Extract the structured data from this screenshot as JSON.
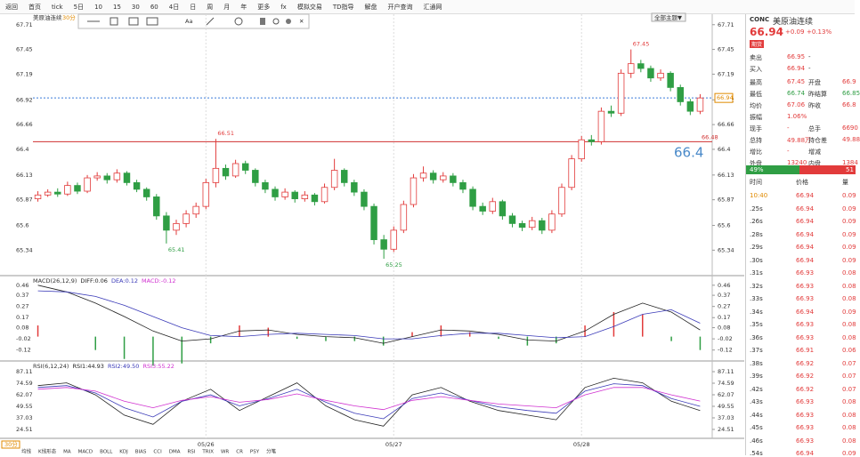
{
  "toolbar": {
    "items": [
      "返回",
      "首页",
      "tick",
      "5日",
      "10",
      "15",
      "30",
      "60",
      "4日",
      "日",
      "周",
      "月",
      "年",
      "更多",
      "fx",
      "模拟交易",
      "TD指导",
      "解盘",
      "开户查询",
      "汇通网"
    ]
  },
  "chart_data": {
    "type": "candlestick",
    "title": "美原油连续",
    "period": "30分",
    "theme_button": "全部主题▼",
    "draw_tool": "Aa",
    "categories": [
      null,
      null,
      null,
      null,
      null,
      null,
      null,
      null,
      null,
      null,
      null,
      null,
      null,
      null,
      null,
      null,
      null,
      "05/26",
      null,
      null,
      null,
      null,
      null,
      null,
      null,
      null,
      null,
      null,
      null,
      null,
      null,
      null,
      null,
      null,
      null,
      null,
      "05/27",
      null,
      null,
      null,
      null,
      null,
      null,
      null,
      null,
      null,
      null,
      null,
      null,
      null,
      null,
      null,
      null,
      null,
      null,
      "05/28",
      null,
      null,
      null,
      null,
      null,
      null,
      null,
      null,
      null,
      null,
      null,
      null
    ],
    "candles": [
      [
        65.88,
        65.96,
        65.85,
        65.92
      ],
      [
        65.92,
        65.98,
        65.9,
        65.95
      ],
      [
        65.95,
        65.99,
        65.9,
        65.93
      ],
      [
        65.93,
        66.06,
        65.91,
        66.02
      ],
      [
        66.02,
        66.05,
        65.93,
        65.96
      ],
      [
        65.96,
        66.13,
        65.94,
        66.1
      ],
      [
        66.1,
        66.16,
        66.07,
        66.12
      ],
      [
        66.12,
        66.15,
        66.04,
        66.08
      ],
      [
        66.08,
        66.19,
        66.05,
        66.15
      ],
      [
        66.15,
        66.17,
        66.02,
        66.05
      ],
      [
        66.05,
        66.08,
        65.95,
        65.98
      ],
      [
        65.98,
        66.0,
        65.86,
        65.9
      ],
      [
        65.9,
        65.93,
        65.66,
        65.7
      ],
      [
        65.7,
        65.74,
        65.41,
        65.55
      ],
      [
        65.55,
        65.66,
        65.5,
        65.62
      ],
      [
        65.62,
        65.76,
        65.58,
        65.72
      ],
      [
        65.72,
        65.84,
        65.68,
        65.8
      ],
      [
        65.8,
        66.09,
        65.77,
        66.05
      ],
      [
        66.05,
        66.51,
        66.0,
        66.2
      ],
      [
        66.2,
        66.24,
        66.08,
        66.12
      ],
      [
        66.12,
        66.29,
        66.1,
        66.25
      ],
      [
        66.25,
        66.28,
        66.14,
        66.18
      ],
      [
        66.18,
        66.2,
        66.01,
        66.05
      ],
      [
        66.05,
        66.08,
        65.94,
        65.98
      ],
      [
        65.98,
        66.01,
        65.86,
        65.9
      ],
      [
        65.9,
        65.99,
        65.87,
        65.95
      ],
      [
        65.95,
        65.97,
        65.84,
        65.88
      ],
      [
        65.88,
        65.96,
        65.85,
        65.92
      ],
      [
        65.92,
        65.94,
        65.81,
        65.85
      ],
      [
        65.85,
        66.04,
        65.83,
        66.0
      ],
      [
        66.0,
        66.3,
        65.97,
        66.18
      ],
      [
        66.18,
        66.2,
        66.01,
        66.05
      ],
      [
        66.05,
        66.08,
        65.91,
        65.95
      ],
      [
        65.95,
        65.98,
        65.76,
        65.8
      ],
      [
        65.8,
        65.83,
        65.4,
        65.45
      ],
      [
        65.45,
        65.5,
        65.25,
        65.35
      ],
      [
        65.35,
        65.59,
        65.32,
        65.55
      ],
      [
        65.55,
        65.86,
        65.52,
        65.82
      ],
      [
        65.82,
        66.14,
        65.79,
        66.1
      ],
      [
        66.1,
        66.22,
        66.06,
        66.15
      ],
      [
        66.15,
        66.18,
        66.04,
        66.08
      ],
      [
        66.08,
        66.16,
        66.05,
        66.12
      ],
      [
        66.12,
        66.15,
        66.01,
        66.05
      ],
      [
        66.05,
        66.08,
        65.94,
        65.98
      ],
      [
        65.98,
        66.01,
        65.76,
        65.8
      ],
      [
        65.8,
        65.84,
        65.71,
        65.75
      ],
      [
        65.75,
        65.89,
        65.72,
        65.85
      ],
      [
        65.85,
        65.87,
        65.66,
        65.7
      ],
      [
        65.7,
        65.73,
        65.58,
        65.62
      ],
      [
        65.62,
        65.65,
        65.54,
        65.58
      ],
      [
        65.58,
        65.69,
        65.55,
        65.65
      ],
      [
        65.65,
        65.68,
        65.51,
        65.55
      ],
      [
        65.55,
        65.76,
        65.52,
        65.72
      ],
      [
        65.72,
        66.04,
        65.69,
        66.0
      ],
      [
        66.0,
        66.34,
        65.97,
        66.3
      ],
      [
        66.3,
        66.54,
        66.27,
        66.5
      ],
      [
        66.5,
        66.55,
        66.44,
        66.48
      ],
      [
        66.48,
        66.84,
        66.45,
        66.8
      ],
      [
        66.8,
        66.86,
        66.74,
        66.78
      ],
      [
        66.78,
        67.24,
        66.75,
        67.2
      ],
      [
        67.2,
        67.45,
        67.15,
        67.3
      ],
      [
        67.3,
        67.34,
        67.21,
        67.25
      ],
      [
        67.25,
        67.28,
        67.11,
        67.15
      ],
      [
        67.15,
        67.24,
        67.12,
        67.2
      ],
      [
        67.2,
        67.22,
        67.01,
        67.05
      ],
      [
        67.05,
        67.08,
        66.86,
        66.9
      ],
      [
        66.9,
        66.93,
        66.76,
        66.8
      ],
      [
        66.8,
        66.98,
        66.77,
        66.94
      ]
    ],
    "ylim": [
      65.25,
      67.82
    ],
    "yticks": [
      67.71,
      67.45,
      67.19,
      66.92,
      66.66,
      66.4,
      66.13,
      65.87,
      65.6,
      65.34
    ],
    "up_color": "#e23b3b",
    "down_color": "#2f9e44",
    "hline": {
      "value": 66.48,
      "color": "#d03030"
    },
    "last_line_color": "#3b7bd9",
    "annotations": [
      {
        "value": 67.45,
        "kind": "high"
      },
      {
        "value": 66.51,
        "kind": "high"
      },
      {
        "value": 65.41,
        "kind": "low"
      },
      {
        "value": 65.25,
        "kind": "low"
      }
    ],
    "price_hint": "66.4",
    "macd": {
      "legend": [
        "MACD(26,12,9)",
        "DIFF:0.06",
        "DEA:0.12",
        "MACD:-0.12"
      ],
      "ylim": [
        -0.21,
        0.53
      ],
      "yticks": [
        0.46,
        0.37,
        0.27,
        0.17,
        0.08,
        -0.02,
        -0.12
      ],
      "diff": [
        0.46,
        0.4,
        0.3,
        0.18,
        0.05,
        -0.04,
        -0.02,
        0.05,
        0.06,
        0.02,
        0.0,
        -0.01,
        -0.06,
        0.0,
        0.06,
        0.05,
        0.02,
        -0.03,
        -0.04,
        0.05,
        0.2,
        0.3,
        0.22,
        0.06
      ],
      "dea": [
        0.41,
        0.4,
        0.36,
        0.28,
        0.18,
        0.08,
        0.01,
        0.0,
        0.02,
        0.03,
        0.02,
        0.01,
        -0.02,
        -0.02,
        0.01,
        0.03,
        0.03,
        0.01,
        -0.01,
        0.0,
        0.09,
        0.2,
        0.24,
        0.12
      ],
      "hist": [
        0.1,
        0.0,
        -0.12,
        -0.2,
        -0.26,
        -0.24,
        -0.06,
        0.1,
        0.08,
        -0.02,
        -0.04,
        -0.04,
        -0.08,
        0.04,
        0.1,
        0.04,
        -0.02,
        -0.08,
        -0.06,
        0.1,
        0.22,
        0.2,
        -0.04,
        -0.12
      ],
      "colors": [
        "#222222",
        "#3a3ab8",
        "#d030d0"
      ]
    },
    "rsi": {
      "legend": [
        "RSI(6,12,24)",
        "RSI1:44.93",
        "RSI2:49.50",
        "RSI3:55.22"
      ],
      "ylim": [
        15.8,
        95.8
      ],
      "yticks": [
        87.11,
        74.59,
        62.07,
        49.55,
        37.03,
        24.51
      ],
      "series": [
        {
          "values": [
            72,
            75,
            62,
            40,
            30,
            55,
            68,
            45,
            60,
            75,
            50,
            35,
            28,
            62,
            70,
            55,
            45,
            40,
            35,
            70,
            80,
            75,
            55,
            44.93
          ],
          "color": "#222222"
        },
        {
          "values": [
            70,
            72,
            64,
            48,
            38,
            55,
            62,
            50,
            58,
            68,
            54,
            42,
            36,
            58,
            64,
            56,
            49,
            45,
            42,
            66,
            74,
            72,
            58,
            49.5
          ],
          "color": "#3a3ab8"
        },
        {
          "values": [
            68,
            70,
            66,
            55,
            48,
            56,
            60,
            54,
            57,
            63,
            56,
            50,
            46,
            56,
            60,
            56,
            52,
            50,
            48,
            62,
            70,
            70,
            62,
            55.22
          ],
          "color": "#d030d0"
        }
      ]
    },
    "tabs": [
      "均线",
      "K线形态",
      "MA",
      "MACD",
      "BOLL",
      "KDJ",
      "BIAS",
      "CCI",
      "DMA",
      "RSI",
      "TRIX",
      "WR",
      "CR",
      "PSY",
      "分笔"
    ]
  },
  "quote": {
    "code": "CONC",
    "name": "美原油连续",
    "price": "66.94",
    "arrow": "↑",
    "change": "+0.09",
    "pct": "+0.13%",
    "badge": "期货",
    "rows": [
      [
        "卖出",
        "66.95",
        "-"
      ],
      [
        "买入",
        "66.94",
        "-"
      ],
      [
        "最高",
        "67.45",
        "开盘",
        "66.9"
      ],
      [
        "最低",
        "66.74",
        "昨结算",
        "66.85"
      ],
      [
        "均价",
        "67.06",
        "昨收",
        "66.8"
      ],
      [
        "振幅",
        "1.06%"
      ],
      [
        "现手",
        "-",
        "总手",
        "6690"
      ],
      [
        "总持",
        "49.88万",
        "持仓差",
        "49.88"
      ],
      [
        "增比",
        "-",
        "增减"
      ],
      [
        "外盘",
        "13240",
        "内盘",
        "1384"
      ]
    ],
    "ratio": [
      "49%",
      "51"
    ],
    "trade_header": [
      "时间",
      "价格",
      "量"
    ],
    "trades": [
      [
        "10:40",
        "66.94",
        "0.09"
      ],
      [
        ".25s",
        "66.94",
        "0.09"
      ],
      [
        ".26s",
        "66.94",
        "0.09"
      ],
      [
        ".28s",
        "66.94",
        "0.09"
      ],
      [
        ".29s",
        "66.94",
        "0.09"
      ],
      [
        ".30s",
        "66.94",
        "0.09"
      ],
      [
        ".31s",
        "66.93",
        "0.08"
      ],
      [
        ".32s",
        "66.93",
        "0.08"
      ],
      [
        ".33s",
        "66.93",
        "0.08"
      ],
      [
        ".34s",
        "66.94",
        "0.09"
      ],
      [
        ".35s",
        "66.93",
        "0.08"
      ],
      [
        ".36s",
        "66.93",
        "0.08"
      ],
      [
        ".37s",
        "66.91",
        "0.06"
      ],
      [
        ".38s",
        "66.92",
        "0.07"
      ],
      [
        ".39s",
        "66.92",
        "0.07"
      ],
      [
        ".42s",
        "66.92",
        "0.07"
      ],
      [
        ".43s",
        "66.93",
        "0.08"
      ],
      [
        ".44s",
        "66.93",
        "0.08"
      ],
      [
        ".45s",
        "66.93",
        "0.08"
      ],
      [
        ".46s",
        "66.93",
        "0.08"
      ],
      [
        ".54s",
        "66.94",
        "0.09"
      ]
    ]
  }
}
